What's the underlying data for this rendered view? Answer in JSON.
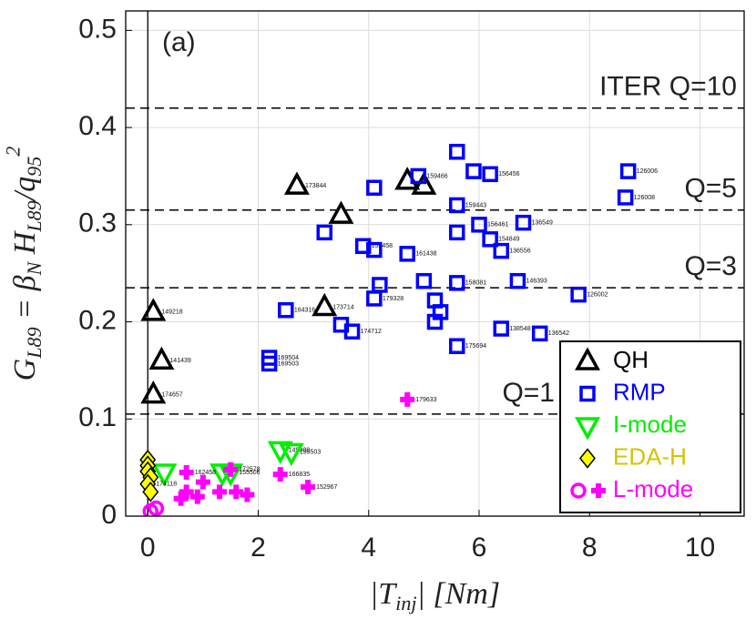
{
  "chart_data": {
    "type": "scatter",
    "ylabel": "G_{L89} = β_N H_{L89}/q_{95}^2",
    "xlabel": "|T_{inj}| [Nm]",
    "annotation": "(a)",
    "xlim": [
      -0.4,
      10.8
    ],
    "ylim": [
      0,
      0.52
    ],
    "xticks": [
      0,
      2,
      4,
      6,
      8,
      10
    ],
    "yticks": [
      0,
      0.1,
      0.2,
      0.3,
      0.4,
      0.5
    ],
    "grid": true,
    "zero_line": 0,
    "reference_lines": [
      {
        "value": 0.42,
        "label": "ITER Q=10"
      },
      {
        "value": 0.315,
        "label": "Q=5"
      },
      {
        "value": 0.235,
        "label": "Q=3"
      },
      {
        "value": 0.105,
        "label": "Q=1"
      }
    ],
    "legend": "lower right",
    "series": [
      {
        "name": "QH",
        "color": "#000000",
        "marker": "triangle",
        "x": [
          0.1,
          0.25,
          0.1,
          2.7,
          3.5,
          3.2,
          4.7,
          5.0
        ],
        "values": [
          0.21,
          0.16,
          0.125,
          0.34,
          0.31,
          0.215,
          0.345,
          0.34
        ],
        "point_labels": [
          "149218",
          "141439",
          "174657",
          "173844",
          null,
          "173714",
          null,
          null
        ]
      },
      {
        "name": "RMP",
        "color": "#0000ff",
        "marker": "square",
        "x": [
          5.6,
          4.9,
          5.9,
          6.2,
          8.7,
          8.65,
          4.1,
          5.6,
          6.0,
          6.8,
          3.2,
          5.6,
          6.2,
          6.4,
          3.9,
          4.1,
          4.7,
          4.2,
          5.0,
          5.6,
          6.7,
          7.8,
          4.1,
          5.2,
          5.3,
          5.2,
          2.5,
          3.5,
          3.7,
          5.6,
          6.4,
          7.1,
          2.2,
          2.2
        ],
        "values": [
          0.375,
          0.35,
          0.355,
          0.352,
          0.355,
          0.328,
          0.338,
          0.32,
          0.3,
          0.302,
          0.292,
          0.292,
          0.285,
          0.273,
          0.278,
          0.274,
          0.27,
          0.238,
          0.242,
          0.24,
          0.242,
          0.228,
          0.224,
          0.222,
          0.21,
          0.2,
          0.212,
          0.197,
          0.19,
          0.175,
          0.193,
          0.188,
          0.163,
          0.157
        ],
        "point_labels": [
          null,
          "159466",
          null,
          "156456",
          "126006",
          "126008",
          null,
          "159443",
          "156461",
          "136549",
          null,
          null,
          "154849",
          "136556",
          "159458",
          null,
          "161438",
          null,
          null,
          "158081",
          "146393",
          "126002",
          "179328",
          null,
          null,
          null,
          "164316",
          null,
          "174712",
          "175694",
          "138548",
          "136542",
          "169504",
          "169503"
        ]
      },
      {
        "name": "I-mode",
        "color": "#00ee00",
        "marker": "triangle-down",
        "x": [
          2.4,
          2.6,
          1.5,
          1.35,
          0.3
        ],
        "values": [
          0.068,
          0.066,
          0.045,
          0.045,
          0.045
        ],
        "point_labels": [
          "149908",
          "155503",
          "155506",
          null,
          null
        ]
      },
      {
        "name": "EDA-H",
        "color": "#ffff00",
        "marker": "diamond",
        "x": [
          0.0,
          0.0,
          0.0,
          0.05,
          0.0,
          0.05
        ],
        "values": [
          0.058,
          0.052,
          0.046,
          0.04,
          0.033,
          0.025
        ],
        "point_labels": [
          null,
          null,
          null,
          null,
          "174118",
          null
        ]
      },
      {
        "name": "L-mode",
        "color": "#ff00ff",
        "markers": [
          "circle",
          "circle",
          "plus",
          "plus",
          "plus",
          "plus",
          "plus",
          "plus",
          "plus",
          "plus",
          "plus",
          "plus",
          "plus",
          "plus"
        ],
        "x": [
          0.05,
          0.15,
          4.7,
          2.4,
          2.9,
          1.5,
          0.7,
          1.0,
          0.7,
          0.9,
          1.3,
          1.6,
          1.8,
          0.6
        ],
        "values": [
          0.005,
          0.008,
          0.12,
          0.043,
          0.03,
          0.048,
          0.045,
          0.035,
          0.025,
          0.02,
          0.025,
          0.025,
          0.022,
          0.018
        ],
        "point_labels": [
          null,
          null,
          "179633",
          "166835",
          "152967",
          "172578",
          "162458",
          null,
          null,
          null,
          null,
          null,
          null,
          null
        ]
      }
    ]
  }
}
